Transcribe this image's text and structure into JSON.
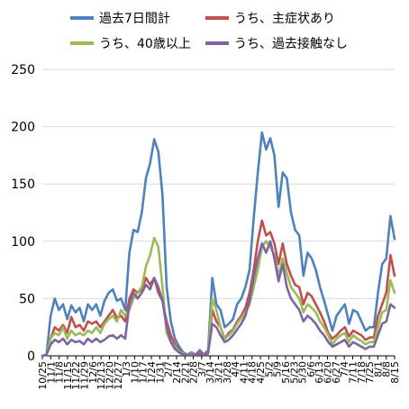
{
  "chart_data": {
    "type": "line",
    "title": "",
    "xlabel": "",
    "ylabel": "",
    "ylim": [
      0,
      250
    ],
    "yticks": [
      0,
      50,
      100,
      150,
      200,
      250
    ],
    "grid": "horizontal",
    "legend_placement": "top",
    "colors": {
      "total": "#4f81bd",
      "symptomatic": "#c0504d",
      "over40": "#9bbb59",
      "no_contact": "#8064a2",
      "grid": "#d9d9d9",
      "axis": "#000000"
    },
    "x_tick_labels": [
      "10/25",
      "11/1",
      "11/8",
      "11/15",
      "11/22",
      "11/29",
      "12/6",
      "12/13",
      "12/20",
      "12/27",
      "1/3",
      "1/10",
      "1/17",
      "1/24",
      "1/31",
      "2/7",
      "2/14",
      "2/21",
      "2/28",
      "3/7",
      "3/14",
      "3/21",
      "3/28",
      "4/4",
      "4/11",
      "4/18",
      "4/25",
      "5/2",
      "5/9",
      "5/16",
      "5/23",
      "5/30",
      "6/6",
      "6/13",
      "6/20",
      "6/27",
      "7/4",
      "7/11",
      "7/18",
      "7/25",
      "8/1",
      "8/8",
      "8/15"
    ],
    "series": [
      {
        "name": "過去7日間計",
        "color": "#4f81bd",
        "values": [
          0,
          1,
          35,
          50,
          40,
          45,
          32,
          44,
          38,
          42,
          30,
          45,
          40,
          45,
          35,
          48,
          55,
          58,
          48,
          50,
          40,
          90,
          110,
          108,
          125,
          155,
          168,
          189,
          178,
          140,
          60,
          30,
          15,
          8,
          3,
          1,
          3,
          1,
          5,
          1,
          5,
          68,
          45,
          40,
          25,
          28,
          32,
          45,
          50,
          60,
          75,
          120,
          160,
          195,
          180,
          190,
          175,
          130,
          160,
          155,
          125,
          110,
          105,
          70,
          90,
          85,
          75,
          60,
          48,
          35,
          22,
          35,
          40,
          45,
          28,
          40,
          38,
          30,
          22,
          25,
          25,
          55,
          80,
          85,
          122,
          102
        ]
      },
      {
        "name": "うち、主症状あり",
        "color": "#c0504d",
        "values": [
          0,
          1,
          15,
          25,
          22,
          27,
          20,
          34,
          25,
          27,
          22,
          30,
          28,
          30,
          25,
          30,
          35,
          40,
          33,
          35,
          30,
          50,
          58,
          55,
          58,
          68,
          62,
          68,
          55,
          48,
          30,
          18,
          10,
          5,
          2,
          1,
          2,
          1,
          3,
          1,
          3,
          40,
          30,
          25,
          15,
          20,
          23,
          30,
          35,
          42,
          55,
          75,
          100,
          118,
          105,
          108,
          98,
          80,
          98,
          80,
          70,
          62,
          60,
          45,
          55,
          52,
          45,
          38,
          30,
          20,
          15,
          18,
          22,
          25,
          17,
          22,
          20,
          18,
          14,
          16,
          16,
          35,
          45,
          55,
          88,
          70
        ]
      },
      {
        "name": "うち、40歳以上",
        "color": "#9bbb59",
        "values": [
          0,
          1,
          15,
          20,
          18,
          25,
          15,
          22,
          18,
          20,
          18,
          22,
          20,
          25,
          20,
          28,
          32,
          35,
          30,
          40,
          35,
          40,
          50,
          55,
          60,
          78,
          88,
          103,
          95,
          60,
          20,
          12,
          8,
          4,
          2,
          1,
          2,
          1,
          2,
          1,
          2,
          50,
          40,
          25,
          15,
          18,
          22,
          28,
          33,
          38,
          45,
          60,
          75,
          95,
          100,
          95,
          88,
          70,
          85,
          72,
          60,
          55,
          50,
          38,
          45,
          42,
          38,
          30,
          25,
          18,
          10,
          15,
          18,
          20,
          12,
          18,
          15,
          13,
          10,
          12,
          12,
          25,
          38,
          40,
          66,
          55
        ]
      },
      {
        "name": "うち、過去接触なし",
        "color": "#8064a2",
        "values": [
          0,
          1,
          10,
          14,
          12,
          15,
          10,
          14,
          12,
          13,
          10,
          15,
          12,
          15,
          12,
          14,
          17,
          18,
          15,
          18,
          15,
          45,
          55,
          50,
          55,
          62,
          58,
          68,
          60,
          48,
          25,
          12,
          6,
          3,
          1,
          1,
          1,
          1,
          2,
          1,
          2,
          28,
          25,
          18,
          12,
          14,
          18,
          23,
          28,
          35,
          48,
          68,
          85,
          98,
          90,
          100,
          85,
          65,
          80,
          60,
          50,
          45,
          40,
          30,
          35,
          32,
          28,
          22,
          18,
          12,
          8,
          10,
          12,
          14,
          8,
          12,
          10,
          8,
          6,
          8,
          8,
          18,
          28,
          30,
          45,
          42
        ]
      }
    ]
  }
}
